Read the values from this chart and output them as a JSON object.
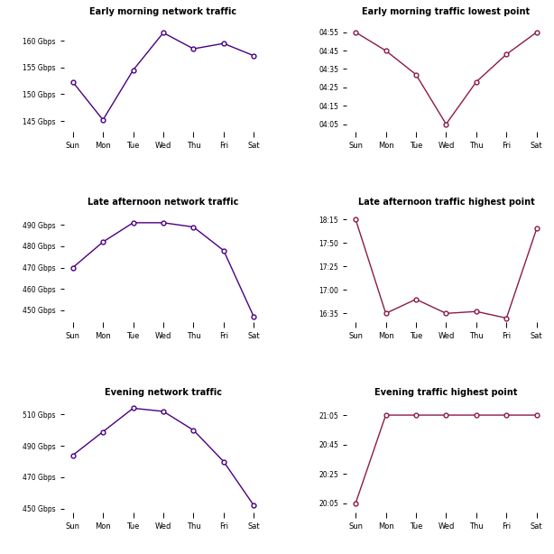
{
  "days": [
    "Sun",
    "Mon",
    "Tue",
    "Wed",
    "Thu",
    "Fri",
    "Sat"
  ],
  "charts": [
    {
      "title": "Early morning network traffic",
      "color": "#4B0082",
      "values": [
        152.3,
        145.2,
        154.5,
        161.5,
        158.5,
        159.5,
        157.2
      ],
      "yticks": [
        145,
        150,
        155,
        160
      ],
      "ytick_labels": [
        "145 Gbps",
        "150 Gbps",
        "155 Gbps",
        "160 Gbps"
      ],
      "ylim": [
        142,
        164
      ]
    },
    {
      "title": "Early morning traffic lowest point",
      "color": "#8B1A4A",
      "values": [
        58.0,
        46.0,
        32.0,
        4.0,
        28.0,
        44.0,
        58.0
      ],
      "yticks": [
        5,
        15,
        25,
        35,
        45,
        55
      ],
      "ytick_labels": [
        "04:05",
        "04:15",
        "04:25",
        "04:35",
        "04:45",
        "04:55"
      ],
      "ylim": [
        -2,
        62
      ]
    },
    {
      "title": "Late afternoon network traffic",
      "color": "#4B0082",
      "values": [
        470,
        482,
        491,
        491,
        489,
        478,
        447
      ],
      "yticks": [
        450,
        460,
        470,
        480,
        490
      ],
      "ytick_labels": [
        "450 Gbps",
        "460 Gbps",
        "470 Gbps",
        "480 Gbps",
        "490 Gbps"
      ],
      "ylim": [
        442,
        497
      ]
    },
    {
      "title": "Late afternoon traffic highest point",
      "color": "#8B1A4A",
      "values": [
        100,
        38,
        50,
        38,
        40,
        30,
        92
      ],
      "yticks": [
        5,
        20,
        35,
        50,
        65,
        80,
        95
      ],
      "ytick_labels": [
        "16:35",
        "17:00",
        "17:25",
        "17:50",
        "18:15",
        "",
        ""
      ],
      "ylim": [
        -5,
        105
      ]
    },
    {
      "title": "Evening network traffic",
      "color": "#4B0082",
      "values": [
        484,
        499,
        514,
        512,
        500,
        480,
        452
      ],
      "yticks": [
        450,
        470,
        490,
        510
      ],
      "ytick_labels": [
        "450 Gbps",
        "470 Gbps",
        "490 Gbps",
        "510 Gbps"
      ],
      "ylim": [
        444,
        519
      ]
    },
    {
      "title": "Evening traffic highest point",
      "color": "#8B1A4A",
      "values": [
        5,
        65,
        65,
        65,
        65,
        65,
        65
      ],
      "yticks": [
        5,
        25,
        45,
        65
      ],
      "ytick_labels": [
        "20:05",
        "20:25",
        "20:45",
        "21:05"
      ],
      "ylim": [
        -2,
        72
      ]
    }
  ]
}
